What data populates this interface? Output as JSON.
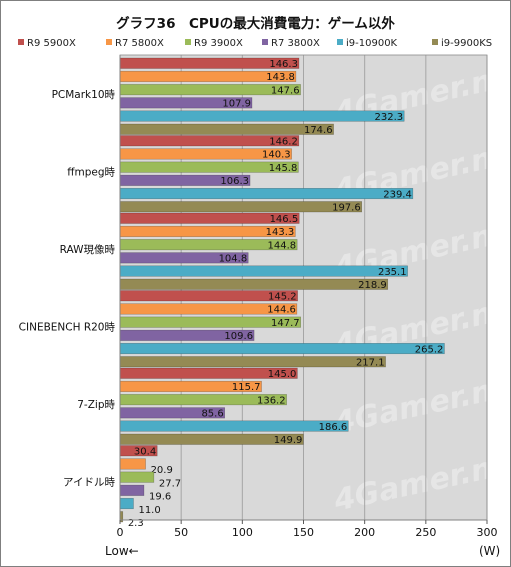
{
  "chart_data": {
    "type": "bar",
    "orientation": "horizontal",
    "title": "グラフ36　CPUの最大消費電力：ゲーム以外",
    "categories": [
      "PCMark10時",
      "ffmpeg時",
      "RAW現像時",
      "CINEBENCH R20時",
      "7-Zip時",
      "アイドル時"
    ],
    "series": [
      {
        "name": "R9 5900X",
        "color": "#c0504d",
        "values": [
          146.3,
          146.2,
          146.5,
          145.2,
          145.0,
          30.4
        ]
      },
      {
        "name": "R7 5800X",
        "color": "#f79646",
        "values": [
          143.8,
          140.3,
          143.3,
          144.6,
          115.7,
          20.9
        ]
      },
      {
        "name": "R9 3900X",
        "color": "#9bbb59",
        "values": [
          147.6,
          145.8,
          144.8,
          147.7,
          136.2,
          27.7
        ]
      },
      {
        "name": "R7 3800X",
        "color": "#8064a2",
        "values": [
          107.9,
          106.3,
          104.8,
          109.6,
          85.6,
          19.6
        ]
      },
      {
        "name": "i9-10900K",
        "color": "#4bacc6",
        "values": [
          232.3,
          239.4,
          235.1,
          265.2,
          186.6,
          11.0
        ]
      },
      {
        "name": "i9-9900KS",
        "color": "#948a54",
        "values": [
          174.6,
          197.6,
          218.9,
          217.1,
          149.9,
          2.3
        ]
      }
    ],
    "xlim": [
      0,
      300
    ],
    "xticks": [
      0,
      50,
      100,
      150,
      200,
      250,
      300
    ],
    "xlabel": "(W)",
    "note": "Low←",
    "grid": true,
    "legend_position": "top",
    "watermark": "4Gamer.net",
    "colors": {
      "plot_background": "#d9d9d9",
      "grid": "#a6a6a6",
      "axis": "#595959"
    }
  }
}
